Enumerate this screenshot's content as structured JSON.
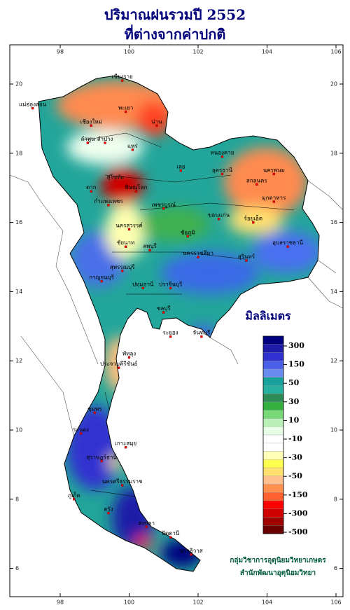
{
  "header": {
    "title_lines": [
      "ปริมาณฝนรวมปี  2552",
      "ที่ต่างจากค่าปกติ"
    ]
  },
  "map": {
    "lon_ticks": [
      98,
      100,
      102,
      104,
      106
    ],
    "lat_ticks": [
      6,
      8,
      10,
      12,
      14,
      16,
      18,
      20
    ]
  },
  "legend": {
    "title": "มิลลิเมตร",
    "labels": [
      300,
      150,
      50,
      30,
      10,
      -10,
      -30,
      -50,
      -150,
      -300,
      -500
    ],
    "colors": [
      "#000080",
      "#1c1ca8",
      "#3030d0",
      "#4a5fe8",
      "#6a8cf0",
      "#18a09a",
      "#26b0a0",
      "#2e8b57",
      "#34b040",
      "#78d878",
      "#b8f0b8",
      "#e6ffe6",
      "#ffffff",
      "#ffffff",
      "#ffffb8",
      "#ffff50",
      "#ffe070",
      "#ffc090",
      "#ff9050",
      "#ff6030",
      "#ff0000",
      "#d00000",
      "#a00000",
      "#6a0000"
    ]
  },
  "credits": [
    "กลุ่มวิชาการอุตุนิยมวิทยาเกษตร",
    "สำนักพัฒนาอุตุนิยมวิทยา"
  ],
  "provinces": [
    "เชียงราย",
    "แม่ฮ่องสอน",
    "เชียงใหม่",
    "พะเยา",
    "น่าน",
    "ลำพูน",
    "ลำปาง",
    "แพร่",
    "หนองคาย",
    "อุดรธานี",
    "นครพนม",
    "สกลนคร",
    "มุกดาหาร",
    "เลย",
    "ตาก",
    "สุโขทัย",
    "พิษณุโลก",
    "กำแพงเพชร",
    "เพชรบูรณ์",
    "ขอนแก่น",
    "ร้อยเอ็ด",
    "นครสวรรค์",
    "ชัยภูมิ",
    "อุบลราชธานี",
    "ชัยนาท",
    "ลพบุรี",
    "นครราชสีมา",
    "สุรินทร์",
    "สุพรรณบุรี",
    "กาญจนบุรี",
    "ปทุมธานี",
    "ปราจีนบุรี",
    "ชลบุรี",
    "ระยอง",
    "จันทบุรี",
    "พัทลุง",
    "ประจวบคีรีขันธ์",
    "ชุมพร",
    "ระนอง",
    "เกาะสมุย",
    "สุราษฎร์ธานี",
    "ภูเก็ต",
    "นครศรีธรรมราช",
    "ตรัง",
    "สงขลา",
    "ปัตตานี",
    "นราธิวาส"
  ]
}
